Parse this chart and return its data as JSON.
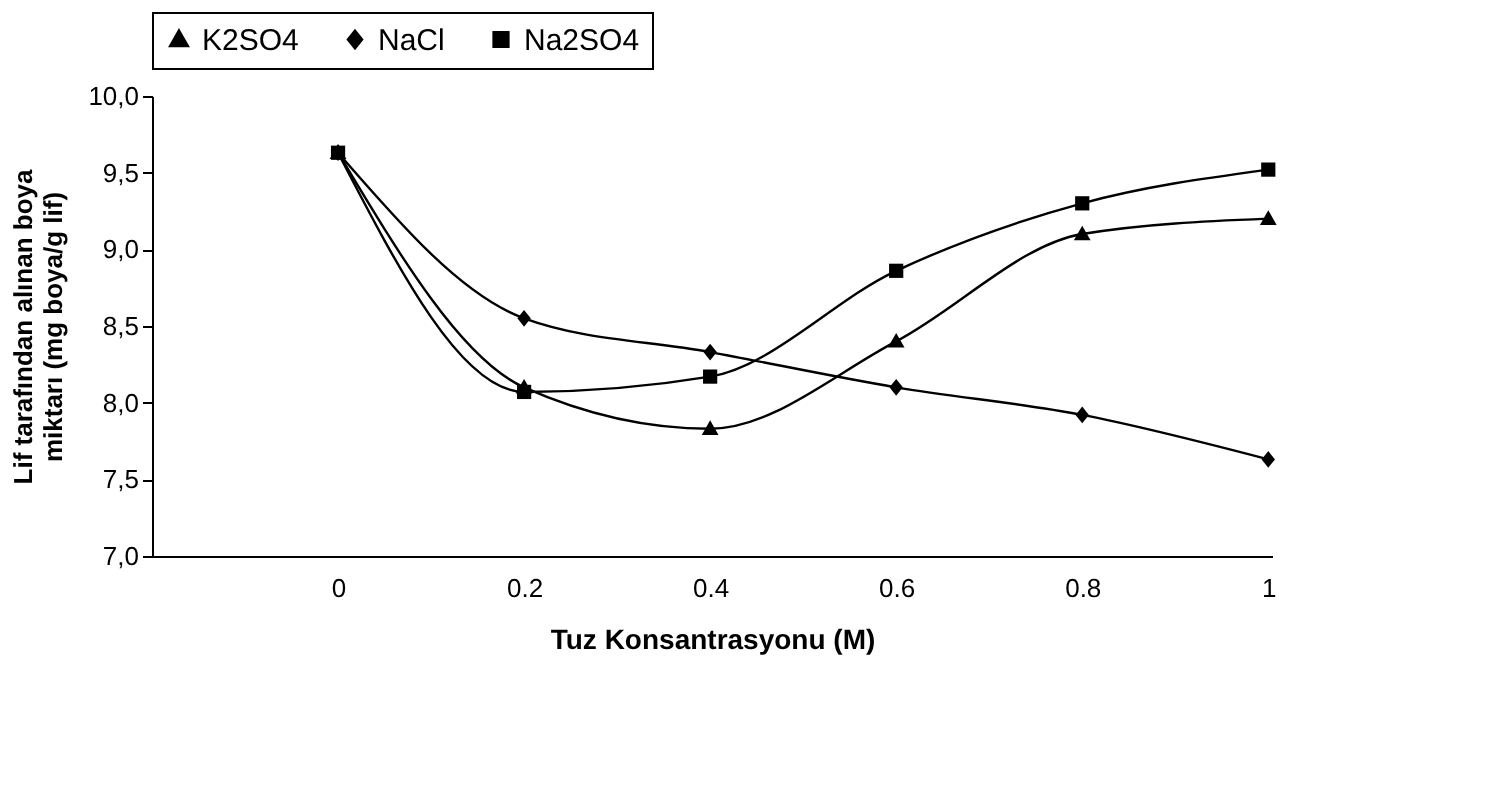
{
  "chart_data": {
    "type": "line",
    "xlabel": "Tuz Konsantrasyonu (M)",
    "ylabel": "Lif tarafından alınan boya miktarı (mg boya/g lif)",
    "categories": [
      "0",
      "0.2",
      "0.4",
      "0.6",
      "0.8",
      "1"
    ],
    "series": [
      {
        "name": "K2SO4",
        "color": "#000000",
        "marker": "triangle",
        "values": [
          9.63,
          8.1,
          7.83,
          8.4,
          9.1,
          9.2
        ]
      },
      {
        "name": "NaCl",
        "color": "#000000",
        "marker": "diamond",
        "values": [
          9.63,
          8.55,
          8.33,
          8.1,
          7.92,
          7.63
        ]
      },
      {
        "name": "Na2SO4",
        "color": "#000000",
        "marker": "square",
        "values": [
          9.63,
          8.07,
          8.17,
          8.86,
          9.3,
          9.52
        ]
      }
    ],
    "ylim": [
      7.0,
      10.0
    ],
    "yticks": [
      {
        "value": 7.0,
        "label": "7,0"
      },
      {
        "value": 7.5,
        "label": "7,5"
      },
      {
        "value": 8.0,
        "label": "8,0"
      },
      {
        "value": 8.5,
        "label": "8,5"
      },
      {
        "value": 9.0,
        "label": "9,0"
      },
      {
        "value": 9.5,
        "label": "9,5"
      },
      {
        "value": 10.0,
        "label": "10,0"
      }
    ],
    "grid": false,
    "legend": "top",
    "line_style": "solid"
  }
}
